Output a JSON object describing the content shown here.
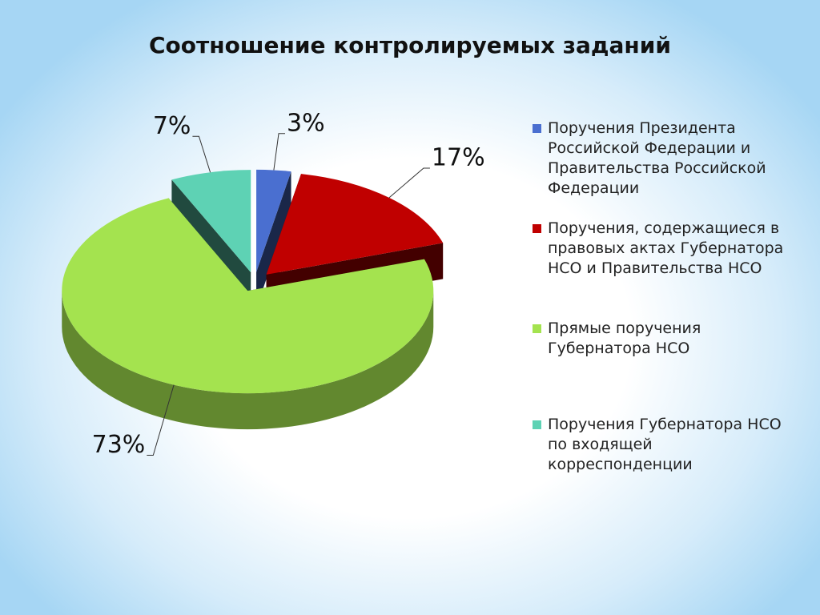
{
  "chart_data": {
    "type": "pie",
    "title": "Соотношение контролируемых заданий",
    "categories": [
      "Поручения Президента Российской Федерации и Правительства Российской Федерации",
      "Поручения, содержащиеся в правовых актах Губернатора НСО и Правительства НСО",
      "Прямые поручения Губернатора НСО",
      "Поручения Губернатора НСО по входящей корреспонденции"
    ],
    "values": [
      3,
      17,
      73,
      7
    ],
    "value_labels": [
      "3%",
      "17%",
      "73%",
      "7%"
    ],
    "colors": [
      "#4a6fd0",
      "#c00000",
      "#a4e34f",
      "#5ed2b4"
    ],
    "legend": "right"
  }
}
